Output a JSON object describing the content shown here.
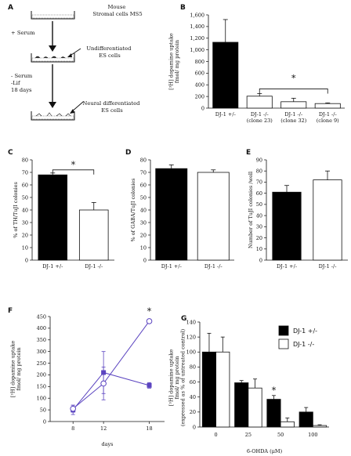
{
  "panels": {
    "A": {
      "letter": "A",
      "label_top": [
        "Mouse",
        "Stromal cells MS5"
      ],
      "label_mid": [
        "Undifferentiated",
        "ES cells"
      ],
      "label_bottom": [
        "Neural differentiated",
        "ES cells"
      ],
      "step1": [
        "+ Serum"
      ],
      "step2": [
        "- Serum",
        "-Lif",
        "18 days"
      ]
    },
    "B": {
      "letter": "B",
      "significance": "*",
      "chart_data": {
        "type": "bar",
        "categories": [
          [
            "DJ-1 +/-"
          ],
          [
            "DJ-1 -/-",
            "(clone 23)"
          ],
          [
            "DJ-1 -/-",
            "(clone 32)"
          ],
          [
            "DJ-1 -/-",
            "(clone 9)"
          ]
        ],
        "values": [
          1130,
          205,
          110,
          78
        ],
        "errors": [
          390,
          45,
          60,
          12
        ],
        "fills": [
          "#000000",
          "#ffffff",
          "#ffffff",
          "#ffffff"
        ],
        "ylabel": [
          "[³H] dopamine uptake",
          "fmol/ mg protein"
        ],
        "ylim": [
          0,
          1600
        ],
        "yticks": [
          "0",
          "200",
          "400",
          "600",
          "800",
          "1,000",
          "1,200",
          "1,400",
          "1,600"
        ],
        "ytick_values": [
          0,
          200,
          400,
          600,
          800,
          1000,
          1200,
          1400,
          1600
        ]
      }
    },
    "C": {
      "letter": "C",
      "significance": "*",
      "chart_data": {
        "type": "bar",
        "categories": [
          [
            "DJ-1 +/-"
          ],
          [
            "DJ-1 -/-"
          ]
        ],
        "values": [
          68,
          40
        ],
        "errors": [
          1.5,
          6
        ],
        "fills": [
          "#000000",
          "#ffffff"
        ],
        "ylabel": [
          "% of TH/TuJI colonies"
        ],
        "ylim": [
          0,
          80
        ],
        "yticks": [
          "0",
          "10",
          "20",
          "30",
          "40",
          "50",
          "60",
          "70",
          "80"
        ],
        "ytick_values": [
          0,
          10,
          20,
          30,
          40,
          50,
          60,
          70,
          80
        ]
      }
    },
    "D": {
      "letter": "D",
      "chart_data": {
        "type": "bar",
        "categories": [
          [
            "DJ-1 +/-"
          ],
          [
            "DJ-1 -/-"
          ]
        ],
        "values": [
          73,
          70
        ],
        "errors": [
          3,
          2
        ],
        "fills": [
          "#000000",
          "#ffffff"
        ],
        "ylabel": [
          "% of GABA/TuJI colonies"
        ],
        "ylim": [
          0,
          80
        ],
        "yticks": [
          "0",
          "10",
          "20",
          "30",
          "40",
          "50",
          "60",
          "70",
          "80"
        ],
        "ytick_values": [
          0,
          10,
          20,
          30,
          40,
          50,
          60,
          70,
          80
        ]
      }
    },
    "E": {
      "letter": "E",
      "chart_data": {
        "type": "bar",
        "categories": [
          [
            "DJ-1 +/-"
          ],
          [
            "DJ-1 -/-"
          ]
        ],
        "values": [
          61,
          72
        ],
        "errors": [
          6,
          8
        ],
        "fills": [
          "#000000",
          "#ffffff"
        ],
        "ylabel": [
          "Number of TuJI colonies /well"
        ],
        "ylim": [
          0,
          90
        ],
        "yticks": [
          "0",
          "10",
          "20",
          "30",
          "40",
          "50",
          "60",
          "70",
          "80",
          "90"
        ],
        "ytick_values": [
          0,
          10,
          20,
          30,
          40,
          50,
          60,
          70,
          80,
          90
        ]
      }
    },
    "F": {
      "letter": "F",
      "significance": "*",
      "chart_data": {
        "type": "line",
        "x": [
          8,
          12,
          18
        ],
        "xticks": [
          "8",
          "12",
          "18"
        ],
        "xlabel": "days",
        "ylabel": [
          "[³H] dopamine uptake",
          "fmol/ mg protein"
        ],
        "ylim": [
          0,
          450
        ],
        "yticks": [
          "0",
          "50",
          "100",
          "150",
          "200",
          "250",
          "300",
          "350",
          "400",
          "450"
        ],
        "ytick_values": [
          0,
          50,
          100,
          150,
          200,
          250,
          300,
          350,
          400,
          450
        ],
        "color": "#5b44c0",
        "series": [
          {
            "marker": "square",
            "values": [
              50,
              210,
              155
            ],
            "errors": [
              20,
              90,
              12
            ]
          },
          {
            "marker": "circle",
            "values": [
              55,
              163,
              430
            ],
            "errors": [
              15,
              70,
              0
            ]
          }
        ]
      }
    },
    "G": {
      "letter": "G",
      "significance": "*",
      "chart_data": {
        "type": "bar",
        "categories": [
          "0",
          "25",
          "50",
          "100"
        ],
        "xlabel": "6-OHDA (μM)",
        "ylabel": [
          "[³H] dopamine uptake",
          "fmol/ mg protein",
          "(expressed as % of untreated control)"
        ],
        "ylim": [
          0,
          140
        ],
        "yticks": [
          "0",
          "20",
          "40",
          "60",
          "80",
          "100",
          "120",
          "140"
        ],
        "ytick_values": [
          0,
          20,
          40,
          60,
          80,
          100,
          120,
          140
        ],
        "series": [
          {
            "name": "DJ-1 +/-",
            "fill": "#000000",
            "values": [
              100,
              59,
              37,
              20
            ],
            "errors": [
              25,
              3,
              5,
              6
            ]
          },
          {
            "name": "DJ-1 -/-",
            "fill": "#ffffff",
            "values": [
              100,
              52,
              7,
              2
            ],
            "errors": [
              20,
              12,
              5,
              1
            ]
          }
        ]
      }
    }
  }
}
